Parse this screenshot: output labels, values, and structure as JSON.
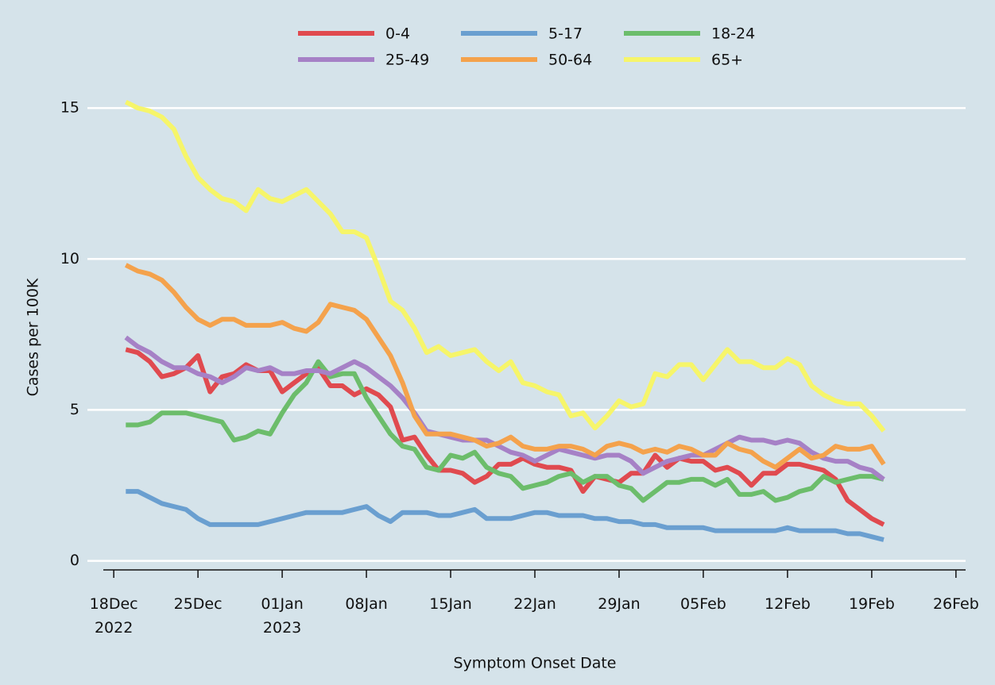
{
  "chart_data": {
    "type": "line",
    "x_label": "Symptom Onset Date",
    "y_label": "Cases per 100K",
    "x": [
      "2022-12-19",
      "2022-12-20",
      "2022-12-21",
      "2022-12-22",
      "2022-12-23",
      "2022-12-24",
      "2022-12-25",
      "2022-12-26",
      "2022-12-27",
      "2022-12-28",
      "2022-12-29",
      "2022-12-30",
      "2022-12-31",
      "2023-01-01",
      "2023-01-02",
      "2023-01-03",
      "2023-01-04",
      "2023-01-05",
      "2023-01-06",
      "2023-01-07",
      "2023-01-08",
      "2023-01-09",
      "2023-01-10",
      "2023-01-11",
      "2023-01-12",
      "2023-01-13",
      "2023-01-14",
      "2023-01-15",
      "2023-01-16",
      "2023-01-17",
      "2023-01-18",
      "2023-01-19",
      "2023-01-20",
      "2023-01-21",
      "2023-01-22",
      "2023-01-23",
      "2023-01-24",
      "2023-01-25",
      "2023-01-26",
      "2023-01-27",
      "2023-01-28",
      "2023-01-29",
      "2023-01-30",
      "2023-01-31",
      "2023-02-01",
      "2023-02-02",
      "2023-02-03",
      "2023-02-04",
      "2023-02-05",
      "2023-02-06",
      "2023-02-07",
      "2023-02-08",
      "2023-02-09",
      "2023-02-10",
      "2023-02-11",
      "2023-02-12",
      "2023-02-13",
      "2023-02-14",
      "2023-02-15",
      "2023-02-16",
      "2023-02-17",
      "2023-02-18",
      "2023-02-19",
      "2023-02-20"
    ],
    "series": [
      {
        "name": "0-4",
        "color": "#e04a4f",
        "values": [
          7.0,
          6.9,
          6.6,
          6.1,
          6.2,
          6.4,
          6.8,
          5.6,
          6.1,
          6.2,
          6.5,
          6.3,
          6.3,
          5.6,
          5.9,
          6.2,
          6.4,
          5.8,
          5.8,
          5.5,
          5.7,
          5.5,
          5.1,
          4.0,
          4.1,
          3.5,
          3.0,
          3.0,
          2.9,
          2.6,
          2.8,
          3.2,
          3.2,
          3.4,
          3.2,
          3.1,
          3.1,
          3.0,
          2.3,
          2.8,
          2.7,
          2.6,
          2.9,
          2.9,
          3.5,
          3.1,
          3.4,
          3.3,
          3.3,
          3.0,
          3.1,
          2.9,
          2.5,
          2.9,
          2.9,
          3.2,
          3.2,
          3.1,
          3.0,
          2.7,
          2.0,
          1.7,
          1.4,
          1.2
        ]
      },
      {
        "name": "5-17",
        "color": "#6a9fd0",
        "values": [
          2.3,
          2.3,
          2.1,
          1.9,
          1.8,
          1.7,
          1.4,
          1.2,
          1.2,
          1.2,
          1.2,
          1.2,
          1.3,
          1.4,
          1.5,
          1.6,
          1.6,
          1.6,
          1.6,
          1.7,
          1.8,
          1.5,
          1.3,
          1.6,
          1.6,
          1.6,
          1.5,
          1.5,
          1.6,
          1.7,
          1.4,
          1.4,
          1.4,
          1.5,
          1.6,
          1.6,
          1.5,
          1.5,
          1.5,
          1.4,
          1.4,
          1.3,
          1.3,
          1.2,
          1.2,
          1.1,
          1.1,
          1.1,
          1.1,
          1.0,
          1.0,
          1.0,
          1.0,
          1.0,
          1.0,
          1.1,
          1.0,
          1.0,
          1.0,
          1.0,
          0.9,
          0.9,
          0.8,
          0.7
        ]
      },
      {
        "name": "18-24",
        "color": "#6cbd6b",
        "values": [
          4.5,
          4.5,
          4.6,
          4.9,
          4.9,
          4.9,
          4.8,
          4.7,
          4.6,
          4.0,
          4.1,
          4.3,
          4.2,
          4.9,
          5.5,
          5.9,
          6.6,
          6.1,
          6.2,
          6.2,
          5.4,
          4.8,
          4.2,
          3.8,
          3.7,
          3.1,
          3.0,
          3.5,
          3.4,
          3.6,
          3.1,
          2.9,
          2.8,
          2.4,
          2.5,
          2.6,
          2.8,
          2.9,
          2.6,
          2.8,
          2.8,
          2.5,
          2.4,
          2.0,
          2.3,
          2.6,
          2.6,
          2.7,
          2.7,
          2.5,
          2.7,
          2.2,
          2.2,
          2.3,
          2.0,
          2.1,
          2.3,
          2.4,
          2.8,
          2.6,
          2.7,
          2.8,
          2.8,
          2.7
        ]
      },
      {
        "name": "25-49",
        "color": "#a681c6",
        "values": [
          7.4,
          7.1,
          6.9,
          6.6,
          6.4,
          6.4,
          6.2,
          6.1,
          5.9,
          6.1,
          6.4,
          6.3,
          6.4,
          6.2,
          6.2,
          6.3,
          6.3,
          6.2,
          6.4,
          6.6,
          6.4,
          6.1,
          5.8,
          5.4,
          4.9,
          4.3,
          4.2,
          4.1,
          4.0,
          4.0,
          4.0,
          3.8,
          3.6,
          3.5,
          3.3,
          3.5,
          3.7,
          3.6,
          3.5,
          3.4,
          3.5,
          3.5,
          3.3,
          2.9,
          3.1,
          3.3,
          3.4,
          3.5,
          3.5,
          3.7,
          3.9,
          4.1,
          4.0,
          4.0,
          3.9,
          4.0,
          3.9,
          3.6,
          3.4,
          3.3,
          3.3,
          3.1,
          3.0,
          2.7
        ]
      },
      {
        "name": "50-64",
        "color": "#f4a24c",
        "values": [
          9.8,
          9.6,
          9.5,
          9.3,
          8.9,
          8.4,
          8.0,
          7.8,
          8.0,
          8.0,
          7.8,
          7.8,
          7.8,
          7.9,
          7.7,
          7.6,
          7.9,
          8.5,
          8.4,
          8.3,
          8.0,
          7.4,
          6.8,
          5.9,
          4.8,
          4.2,
          4.2,
          4.2,
          4.1,
          4.0,
          3.8,
          3.9,
          4.1,
          3.8,
          3.7,
          3.7,
          3.8,
          3.8,
          3.7,
          3.5,
          3.8,
          3.9,
          3.8,
          3.6,
          3.7,
          3.6,
          3.8,
          3.7,
          3.5,
          3.5,
          3.9,
          3.7,
          3.6,
          3.3,
          3.1,
          3.4,
          3.7,
          3.4,
          3.5,
          3.8,
          3.7,
          3.7,
          3.8,
          3.2
        ]
      },
      {
        "name": "65+",
        "color": "#f6f56a",
        "values": [
          15.2,
          15.0,
          14.9,
          14.7,
          14.3,
          13.4,
          12.7,
          12.3,
          12.0,
          11.9,
          11.6,
          12.3,
          12.0,
          11.9,
          12.1,
          12.3,
          11.9,
          11.5,
          10.9,
          10.9,
          10.7,
          9.7,
          8.6,
          8.3,
          7.7,
          6.9,
          7.1,
          6.8,
          6.9,
          7.0,
          6.6,
          6.3,
          6.6,
          5.9,
          5.8,
          5.6,
          5.5,
          4.8,
          4.9,
          4.4,
          4.8,
          5.3,
          5.1,
          5.2,
          6.2,
          6.1,
          6.5,
          6.5,
          6.0,
          6.5,
          7.0,
          6.6,
          6.6,
          6.4,
          6.4,
          6.7,
          6.5,
          5.8,
          5.5,
          5.3,
          5.2,
          5.2,
          4.8,
          4.3
        ]
      }
    ],
    "xlim": [
      "2022-12-17",
      "2023-02-27"
    ],
    "xticks": [
      {
        "value": "2022-12-18",
        "label": "18Dec\n2022"
      },
      {
        "value": "2022-12-25",
        "label": "25Dec"
      },
      {
        "value": "2023-01-01",
        "label": "01Jan\n2023"
      },
      {
        "value": "2023-01-08",
        "label": "08Jan"
      },
      {
        "value": "2023-01-15",
        "label": "15Jan"
      },
      {
        "value": "2023-01-22",
        "label": "22Jan"
      },
      {
        "value": "2023-01-29",
        "label": "29Jan"
      },
      {
        "value": "2023-02-05",
        "label": "05Feb"
      },
      {
        "value": "2023-02-12",
        "label": "12Feb"
      },
      {
        "value": "2023-02-19",
        "label": "19Feb"
      },
      {
        "value": "2023-02-26",
        "label": "26Feb"
      }
    ],
    "ylim": [
      -0.3,
      17.5
    ],
    "yticks": [
      0,
      5,
      10,
      15
    ],
    "grid": true,
    "legend": "top"
  }
}
